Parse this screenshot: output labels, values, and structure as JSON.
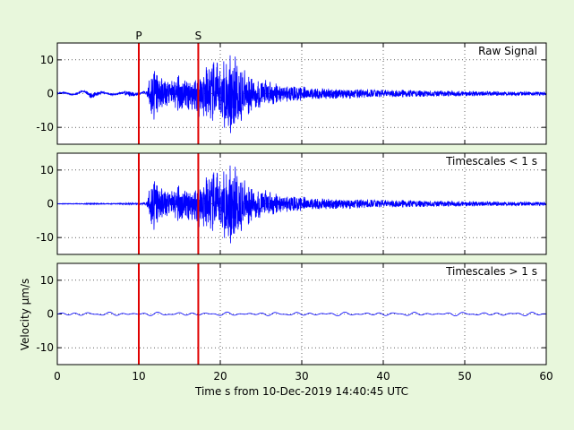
{
  "figure": {
    "background": "#e8f7dc",
    "axes_background": "#ffffff",
    "trace_color": "#0000ff",
    "marker_color": "#e00000"
  },
  "chart_data": [
    {
      "type": "line",
      "title": "Raw Signal",
      "xlim": [
        0,
        60
      ],
      "ylim": [
        -15,
        15
      ],
      "yticks": [
        -10,
        0,
        10
      ],
      "grid": true,
      "ylabel": "",
      "series": [
        {
          "x": [
            0,
            3,
            4,
            6,
            8,
            9,
            10,
            11,
            11.3,
            11.6,
            12,
            12.5,
            13,
            14,
            15,
            16,
            17,
            17.3,
            18,
            19,
            20,
            21,
            21.5,
            22,
            22.5,
            23,
            24,
            25,
            26,
            27,
            28,
            30,
            32,
            35,
            40,
            45,
            50,
            55,
            60
          ],
          "amp": [
            0.2,
            0.2,
            0.8,
            0.3,
            0.4,
            0.9,
            0.3,
            0.5,
            6,
            10,
            8,
            6,
            5,
            4,
            6,
            5,
            6,
            8,
            8,
            10,
            9,
            13,
            13,
            12,
            9,
            7,
            5,
            4.5,
            4,
            3,
            2.5,
            2.2,
            1.8,
            1.5,
            1.2,
            1.0,
            0.8,
            0.7,
            0.6
          ]
        }
      ]
    },
    {
      "type": "line",
      "title": "Timescales < 1 s",
      "xlim": [
        0,
        60
      ],
      "ylim": [
        -15,
        15
      ],
      "yticks": [
        -10,
        0,
        10
      ],
      "grid": true,
      "ylabel": "",
      "series": [
        {
          "x": [
            0,
            3,
            4,
            6,
            8,
            9,
            10,
            11,
            11.3,
            11.6,
            12,
            12.5,
            13,
            14,
            15,
            16,
            17,
            17.3,
            18,
            19,
            20,
            21,
            21.5,
            22,
            22.5,
            23,
            24,
            25,
            26,
            27,
            28,
            30,
            32,
            35,
            40,
            45,
            50,
            55,
            60
          ],
          "amp": [
            0.1,
            0.1,
            0.3,
            0.1,
            0.2,
            0.3,
            0.2,
            0.5,
            6,
            10,
            8,
            6,
            5,
            4,
            6,
            5,
            6,
            8,
            8,
            10,
            9,
            13,
            13,
            12,
            9,
            7,
            5,
            4.5,
            4,
            3,
            2.5,
            2.2,
            1.8,
            1.5,
            1.2,
            1.0,
            0.8,
            0.7,
            0.6
          ]
        }
      ]
    },
    {
      "type": "line",
      "title": "Timescales > 1 s",
      "xlim": [
        0,
        60
      ],
      "ylim": [
        -15,
        15
      ],
      "yticks": [
        -10,
        0,
        10
      ],
      "grid": true,
      "ylabel": "Velocity µm/s",
      "series": [
        {
          "x": [
            0,
            60
          ],
          "amp": [
            0.5,
            0.5
          ]
        }
      ]
    }
  ],
  "markers": [
    {
      "label": "P",
      "x": 10.0
    },
    {
      "label": "S",
      "x": 17.3
    }
  ],
  "xaxis": {
    "ticks": [
      0,
      10,
      20,
      30,
      40,
      50,
      60
    ],
    "label": "Time s from 10-Dec-2019 14:40:45 UTC"
  }
}
